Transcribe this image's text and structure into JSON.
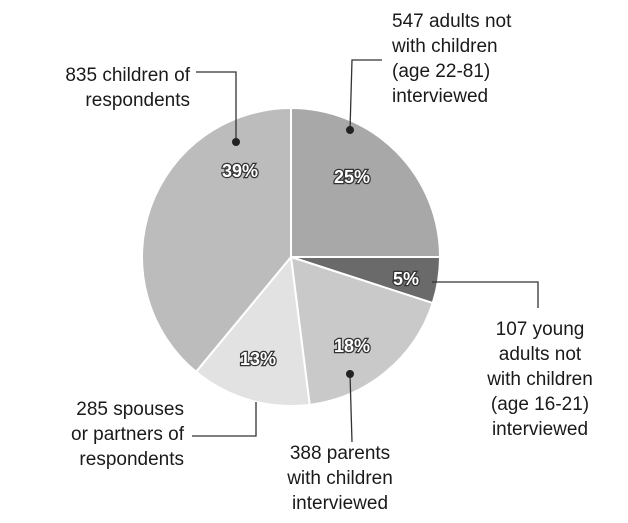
{
  "chart_data": {
    "type": "pie",
    "categories": [
      [
        "547 adults not",
        "with children",
        "(age 22-81)",
        "interviewed"
      ],
      [
        "107 young",
        "adults not",
        "with children",
        "(age 16-21)",
        "interviewed"
      ],
      [
        "388 parents",
        "with children",
        "interviewed"
      ],
      [
        "285 spouses",
        "or partners of",
        "respondents"
      ],
      [
        "835 children of",
        "respondents"
      ]
    ],
    "values": [
      25,
      5,
      18,
      13,
      39
    ],
    "value_labels": [
      "25%",
      "5%",
      "18%",
      "13%",
      "39%"
    ],
    "colors": [
      "#a8a8a8",
      "#6a6a6a",
      "#c9c9c9",
      "#e2e2e2",
      "#bcbcbc"
    ]
  }
}
